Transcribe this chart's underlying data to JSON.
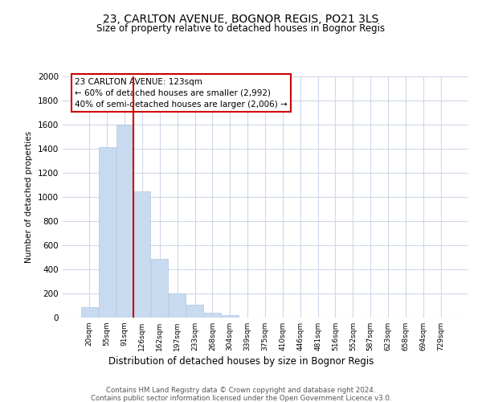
{
  "title": "23, CARLTON AVENUE, BOGNOR REGIS, PO21 3LS",
  "subtitle": "Size of property relative to detached houses in Bognor Regis",
  "xlabel": "Distribution of detached houses by size in Bognor Regis",
  "ylabel": "Number of detached properties",
  "bar_labels": [
    "20sqm",
    "55sqm",
    "91sqm",
    "126sqm",
    "162sqm",
    "197sqm",
    "233sqm",
    "268sqm",
    "304sqm",
    "339sqm",
    "375sqm",
    "410sqm",
    "446sqm",
    "481sqm",
    "516sqm",
    "552sqm",
    "587sqm",
    "623sqm",
    "658sqm",
    "694sqm",
    "729sqm"
  ],
  "bar_values": [
    85,
    1415,
    1600,
    1050,
    490,
    200,
    110,
    40,
    20,
    0,
    0,
    0,
    0,
    0,
    0,
    0,
    0,
    0,
    0,
    0,
    0
  ],
  "bar_color": "#c8daf0",
  "bar_edge_color": "#b8cce4",
  "vline_color": "#cc0000",
  "ylim": [
    0,
    2000
  ],
  "yticks": [
    0,
    200,
    400,
    600,
    800,
    1000,
    1200,
    1400,
    1600,
    1800,
    2000
  ],
  "annotation_title": "23 CARLTON AVENUE: 123sqm",
  "annotation_line1": "← 60% of detached houses are smaller (2,992)",
  "annotation_line2": "40% of semi-detached houses are larger (2,006) →",
  "footer1": "Contains HM Land Registry data © Crown copyright and database right 2024.",
  "footer2": "Contains public sector information licensed under the Open Government Licence v3.0.",
  "bg_color": "#ffffff",
  "grid_color": "#cdd8ea"
}
